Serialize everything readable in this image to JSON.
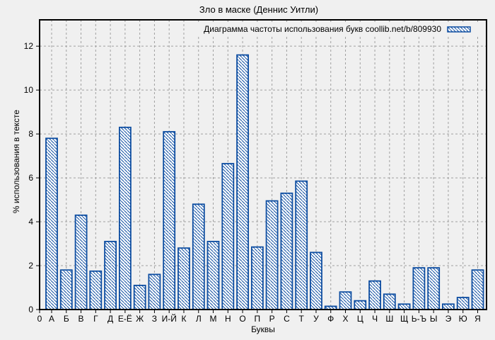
{
  "chart_data": {
    "type": "bar",
    "title": "Зло в маске (Деннис Уитли)",
    "legend": "Диаграмма частоты использования букв coollib.net/b/809930",
    "legend_position": "top-right-inside",
    "xlabel": "Буквы",
    "ylabel": "% использования в тексте",
    "x_origin_label": "0",
    "categories": [
      "А",
      "Б",
      "В",
      "Г",
      "Д",
      "Е-Ё",
      "Ж",
      "З",
      "И-Й",
      "К",
      "Л",
      "М",
      "Н",
      "О",
      "П",
      "Р",
      "С",
      "Т",
      "У",
      "Ф",
      "Х",
      "Ц",
      "Ч",
      "Ш",
      "Щ",
      "Ь-Ъ",
      "Ы",
      "Э",
      "Ю",
      "Я"
    ],
    "values": [
      7.8,
      1.8,
      4.3,
      1.75,
      3.1,
      8.3,
      1.1,
      1.6,
      8.1,
      2.8,
      4.8,
      3.1,
      6.65,
      11.6,
      2.85,
      4.95,
      5.3,
      5.85,
      2.6,
      0.15,
      0.8,
      0.4,
      1.3,
      0.7,
      0.25,
      1.9,
      1.9,
      0.25,
      0.55,
      1.8
    ],
    "yticks": [
      0,
      2,
      4,
      6,
      8,
      10,
      12
    ],
    "ylim": [
      0,
      13.2
    ],
    "grid": true,
    "bar_style": "hatched-diagonal"
  },
  "colors": {
    "background": "#f0f0f0",
    "bar_stroke": "#0d4da1",
    "bar_fill": "#ffffff",
    "grid": "#a0a0a0",
    "border": "#000000",
    "text": "#000000"
  }
}
